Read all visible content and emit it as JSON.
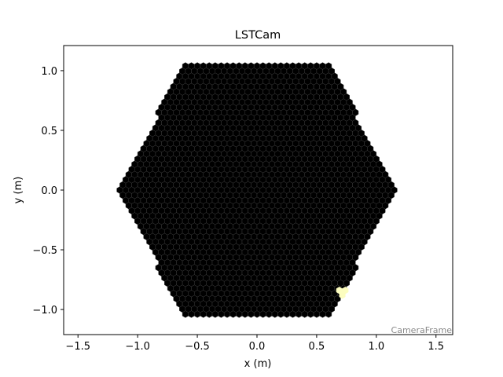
{
  "chart_data": {
    "type": "camera",
    "title": "LSTCam",
    "x_label": "x  (m)",
    "y_label": "y  (m)",
    "annotation": "CameraFrame",
    "xlim": [
      -1.62,
      1.64
    ],
    "ylim": [
      -1.21,
      1.21
    ],
    "xticks": [
      {
        "value": -1.5,
        "label": "−1.5"
      },
      {
        "value": -1.0,
        "label": "−1.0"
      },
      {
        "value": -0.5,
        "label": "−0.5"
      },
      {
        "value": 0.0,
        "label": "0.0"
      },
      {
        "value": 0.5,
        "label": "0.5"
      },
      {
        "value": 1.0,
        "label": "1.0"
      },
      {
        "value": 1.5,
        "label": "1.5"
      }
    ],
    "yticks": [
      {
        "value": -1.0,
        "label": "−1.0"
      },
      {
        "value": -0.5,
        "label": "−0.5"
      },
      {
        "value": 0.0,
        "label": "0.0"
      },
      {
        "value": 0.5,
        "label": "0.5"
      },
      {
        "value": 1.0,
        "label": "1.0"
      }
    ],
    "series": [
      {
        "color": "#fcfdbf",
        "x": [
          0.69,
          0.74,
          0.715,
          0.715
        ],
        "values": [
          -0.84,
          -0.84,
          -0.88,
          -0.86
        ]
      }
    ]
  }
}
